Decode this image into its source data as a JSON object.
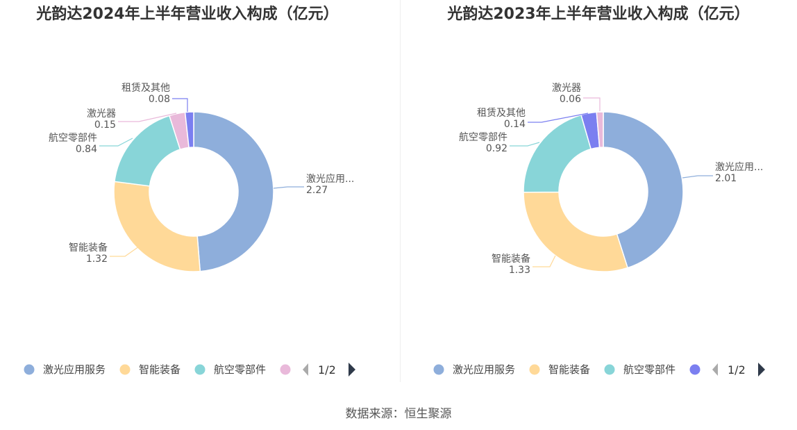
{
  "footer": {
    "source": "数据来源：恒生聚源"
  },
  "chart_data": [
    {
      "type": "pie",
      "title": "光韵达2024年上半年营业收入构成（亿元）",
      "slices": [
        {
          "name": "激光应用服务",
          "label": "激光应用...",
          "value": 2.27,
          "value_label": "2.27",
          "color": "#8eaedb"
        },
        {
          "name": "智能装备",
          "label": "智能装备",
          "value": 1.32,
          "value_label": "1.32",
          "color": "#ffd998"
        },
        {
          "name": "航空零部件",
          "label": "航空零部件",
          "value": 0.84,
          "value_label": "0.84",
          "color": "#88d5d8"
        },
        {
          "name": "激光器",
          "label": "激光器",
          "value": 0.15,
          "value_label": "0.15",
          "color": "#e9b9da"
        },
        {
          "name": "租赁及其他",
          "label": "租赁及其他",
          "value": 0.08,
          "value_label": "0.08",
          "color": "#7b7ff0"
        }
      ],
      "legend": {
        "items": [
          "激光应用服务",
          "智能装备",
          "航空零部件"
        ],
        "extra_color": "#e9b9da",
        "page": "1/2"
      }
    },
    {
      "type": "pie",
      "title": "光韵达2023年上半年营业收入构成（亿元）",
      "slices": [
        {
          "name": "激光应用服务",
          "label": "激光应用...",
          "value": 2.01,
          "value_label": "2.01",
          "color": "#8eaedb"
        },
        {
          "name": "智能装备",
          "label": "智能装备",
          "value": 1.33,
          "value_label": "1.33",
          "color": "#ffd998"
        },
        {
          "name": "航空零部件",
          "label": "航空零部件",
          "value": 0.92,
          "value_label": "0.92",
          "color": "#88d5d8"
        },
        {
          "name": "租赁及其他",
          "label": "租赁及其他",
          "value": 0.14,
          "value_label": "0.14",
          "color": "#7b7ff0"
        },
        {
          "name": "激光器",
          "label": "激光器",
          "value": 0.06,
          "value_label": "0.06",
          "color": "#e9b9da"
        }
      ],
      "legend": {
        "items": [
          "激光应用服务",
          "智能装备",
          "航空零部件"
        ],
        "extra_color": "#7b7ff0",
        "page": "1/2"
      }
    }
  ]
}
